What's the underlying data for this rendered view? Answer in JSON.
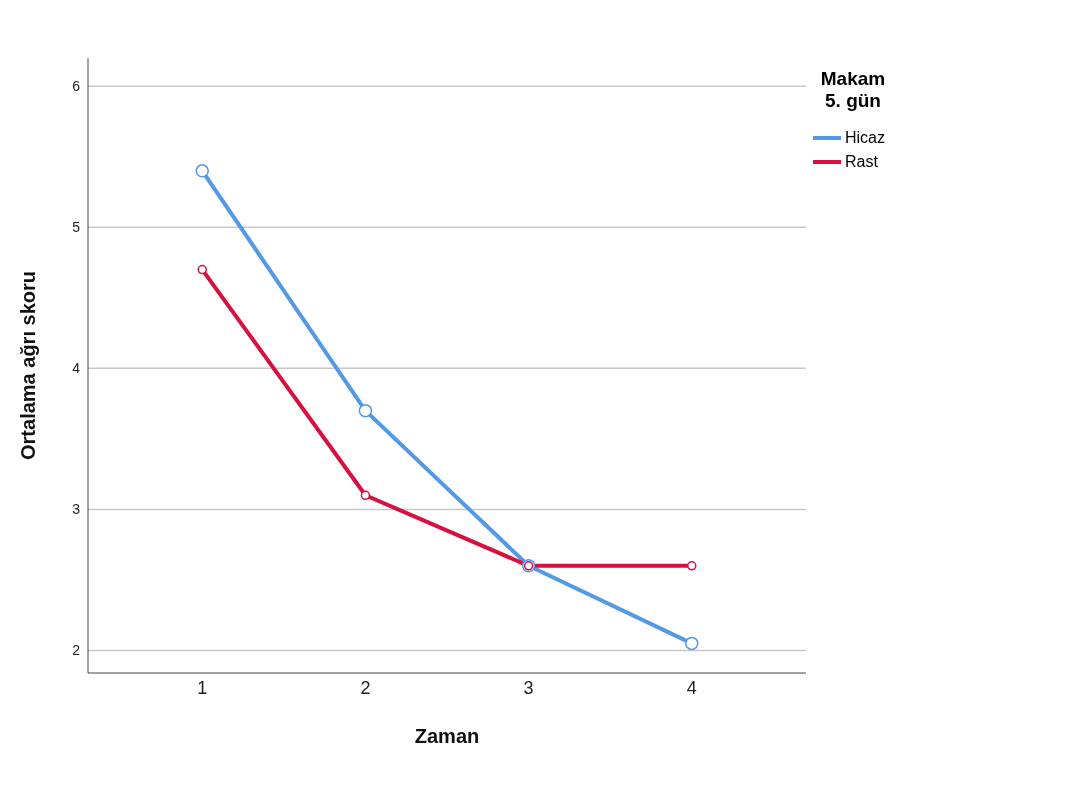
{
  "chart_data": {
    "type": "line",
    "xlabel": "Zaman",
    "ylabel": "Ortalama ağrı skoru",
    "legend_title": "Makam 5. gün",
    "x": [
      1,
      2,
      3,
      4
    ],
    "xlim": [
      0.3,
      4.7
    ],
    "xticks": [
      1,
      2,
      3,
      4
    ],
    "ylim": [
      1.84,
      6.2
    ],
    "yticks": [
      2,
      3,
      4,
      5,
      6
    ],
    "series": [
      {
        "name": "Hicaz",
        "color": "#5499e6",
        "values": [
          5.4,
          3.7,
          2.6,
          2.05
        ]
      },
      {
        "name": "Rast",
        "color": "#d6103f",
        "values": [
          4.7,
          3.1,
          2.6,
          2.6
        ]
      }
    ],
    "grid": "y",
    "legend": "top right",
    "marker": "circle",
    "line_style": "solid"
  }
}
